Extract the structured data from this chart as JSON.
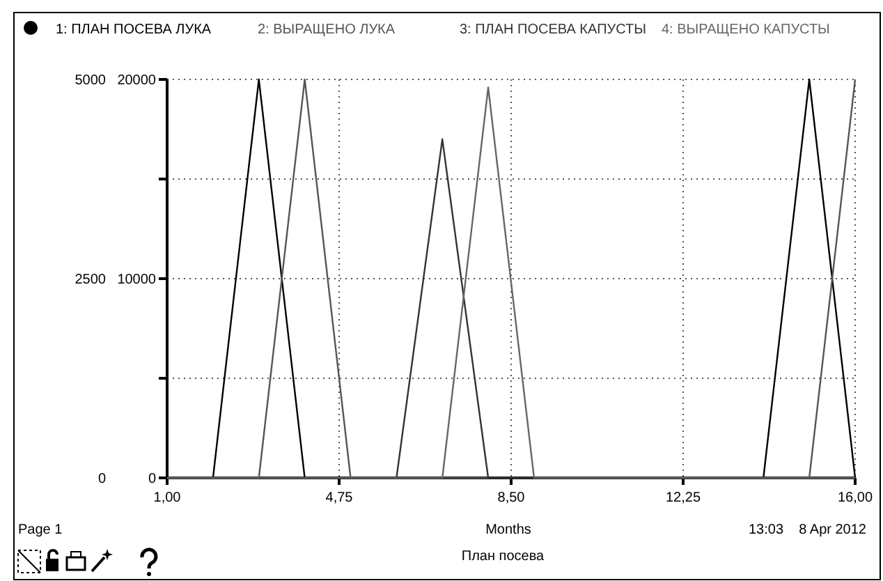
{
  "chart_data": {
    "type": "line",
    "title": "План посева",
    "xlabel": "Months",
    "x": [
      1,
      2,
      3,
      4,
      5,
      6,
      7,
      8,
      9,
      10,
      11,
      12,
      13,
      14,
      15,
      16
    ],
    "series": [
      {
        "name": "1: ПЛАН ПОСЕВА ЛУКА",
        "color": "#000000",
        "values": [
          0,
          0,
          20000,
          0,
          0,
          0,
          0,
          0,
          0,
          0,
          0,
          0,
          0,
          0,
          20000,
          0
        ]
      },
      {
        "name": "2: ВЫРАЩЕНО ЛУКА",
        "color": "#555555",
        "values": [
          0,
          0,
          0,
          20000,
          0,
          0,
          0,
          0,
          0,
          0,
          0,
          0,
          0,
          0,
          0,
          20000
        ]
      },
      {
        "name": "3: ПЛАН ПОСЕВА КАПУСТЫ",
        "color": "#333333",
        "axis": "y2",
        "values": [
          0,
          0,
          0,
          0,
          0,
          0,
          4250,
          0,
          0,
          0,
          0,
          0,
          0,
          0,
          0,
          0
        ]
      },
      {
        "name": "4: ВЫРАЩЕНО КАПУСТЫ",
        "color": "#666666",
        "axis": "y2",
        "values": [
          0,
          0,
          0,
          0,
          0,
          0,
          0,
          4900,
          0,
          0,
          0,
          0,
          0,
          0,
          0,
          0
        ]
      }
    ],
    "xlim": [
      1,
      16
    ],
    "xticks": [
      {
        "value": 1,
        "label": "1,00"
      },
      {
        "value": 4.75,
        "label": "4,75"
      },
      {
        "value": 8.5,
        "label": "8,50"
      },
      {
        "value": 12.25,
        "label": "12,25"
      },
      {
        "value": 16,
        "label": "16,00"
      }
    ],
    "ylim": [
      0,
      20000
    ],
    "yticks": [
      0,
      {
        "value": 5000,
        "label": null
      },
      10000,
      {
        "value": 15000,
        "label": null
      },
      20000
    ],
    "y2lim": [
      0,
      5000
    ],
    "y2ticks": [
      0,
      2500,
      5000
    ],
    "grid": true,
    "legend": "top",
    "line_style": "solid",
    "annotations": [
      "Page 1",
      "13:03    8 Apr 2012"
    ]
  }
}
